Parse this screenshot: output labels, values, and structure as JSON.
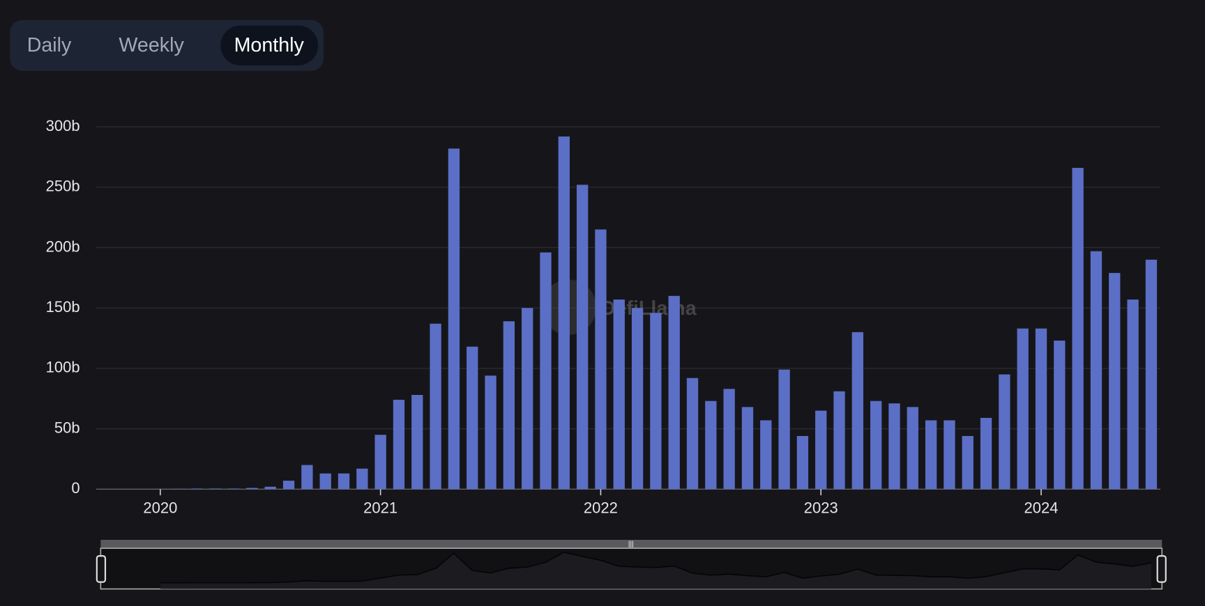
{
  "buttons": [
    "Daily",
    "Weekly",
    "Monthly"
  ],
  "watermark": "DefiLlama",
  "chart_data": {
    "type": "bar",
    "color": "#5b6fc6",
    "grid": true,
    "categories": [
      null,
      null,
      null,
      "2020",
      null,
      null,
      null,
      null,
      null,
      null,
      null,
      null,
      null,
      null,
      null,
      "2021",
      null,
      null,
      null,
      null,
      null,
      null,
      null,
      null,
      null,
      null,
      null,
      "2022",
      null,
      null,
      null,
      null,
      null,
      null,
      null,
      null,
      null,
      null,
      null,
      "2023",
      null,
      null,
      null,
      null,
      null,
      null,
      null,
      null,
      null,
      null,
      null,
      "2024",
      null,
      null,
      null,
      null,
      null,
      null
    ],
    "values": [
      null,
      null,
      null,
      0,
      0.3,
      0.5,
      0.5,
      0.5,
      1,
      2,
      7,
      20,
      13,
      13,
      17,
      45,
      74,
      78,
      137,
      282,
      118,
      94,
      139,
      150,
      196,
      292,
      252,
      215,
      157,
      150,
      146,
      160,
      92,
      73,
      83,
      68,
      57,
      99,
      44,
      65,
      81,
      130,
      73,
      71,
      68,
      57,
      57,
      44,
      59,
      95,
      133,
      133,
      123,
      266,
      197,
      179,
      157,
      190
    ],
    "ylim": [
      0,
      300
    ],
    "yticks": [
      0,
      {
        "value": 50,
        "label": "50b"
      },
      {
        "value": 100,
        "label": "100b"
      },
      {
        "value": 150,
        "label": "150b"
      },
      {
        "value": 200,
        "label": "200b"
      },
      {
        "value": 250,
        "label": "250b"
      },
      {
        "value": 300,
        "label": "300b"
      }
    ]
  }
}
